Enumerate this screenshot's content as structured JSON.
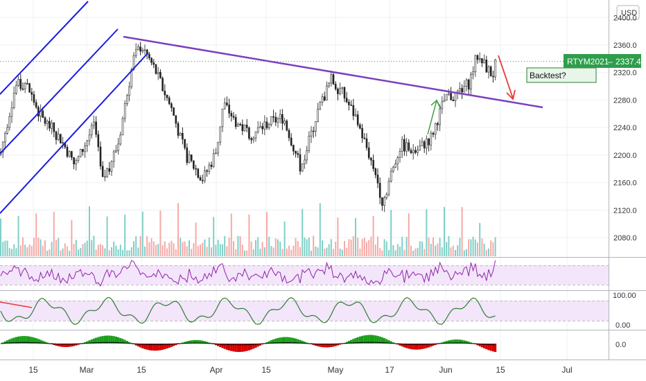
{
  "currency_label": "USD",
  "colors": {
    "up": "#26a69a",
    "down": "#ef5350",
    "vol_up": "#7fcfc7",
    "vol_down": "#f6a9a6",
    "channel": "#1a1adf",
    "trendline": "#7b3fbf",
    "arrow": "#e53935",
    "green_arrow": "#43a047",
    "price_tag_bg": "#2e9e4c",
    "rsi_line": "#8e24aa",
    "rsi_band": "#f3e5fa",
    "stoch_line": "#2e7d32",
    "stoch_band": "#f3e5fa",
    "osc_pos": "#1b9e1b",
    "osc_neg": "#d50000",
    "osc_line": "#111111"
  },
  "price_tag": {
    "symbol": "RTYM2021",
    "price": "2337.4"
  },
  "annotation": {
    "text": "Backtest?"
  },
  "price_axis": {
    "ticks": [
      "2360.0",
      "2320.0",
      "2280.0",
      "2240.0",
      "2200.0",
      "2160.0",
      "2120.0",
      "2080.0"
    ],
    "partial_top_tick": "2400.0"
  },
  "stoch_axis": {
    "ticks": [
      "100.00",
      "0.00"
    ]
  },
  "osc_axis": {
    "ticks": [
      "0.0"
    ]
  },
  "time_axis": {
    "labels": [
      "15",
      "Mar",
      "15",
      "Apr",
      "15",
      "May",
      "17",
      "Jun",
      "15",
      "Jul"
    ]
  },
  "chart_data": {
    "type": "candlestick",
    "symbol": "RTYM2021",
    "currency": "USD",
    "y_range": [
      2040,
      2410
    ],
    "x_labels": [
      "15",
      "Mar",
      "15",
      "Apr",
      "15",
      "May",
      "17",
      "Jun",
      "15",
      "Jul"
    ],
    "last_price": 2337.4,
    "close_path": [
      [
        "Feb 02",
        2200
      ],
      [
        "Feb 08",
        2300
      ],
      [
        "Feb 12",
        2305
      ],
      [
        "Feb 17",
        2255
      ],
      [
        "Feb 22",
        2225
      ],
      [
        "Feb 26",
        2185
      ],
      [
        "Mar 03",
        2245
      ],
      [
        "Mar 05",
        2160
      ],
      [
        "Mar 09",
        2215
      ],
      [
        "Mar 13",
        2340
      ],
      [
        "Mar 15",
        2360
      ],
      [
        "Mar 18",
        2325
      ],
      [
        "Mar 22",
        2265
      ],
      [
        "Mar 25",
        2200
      ],
      [
        "Mar 29",
        2165
      ],
      [
        "Apr 01",
        2205
      ],
      [
        "Apr 03",
        2275
      ],
      [
        "Apr 07",
        2245
      ],
      [
        "Apr 11",
        2230
      ],
      [
        "Apr 15",
        2245
      ],
      [
        "Apr 19",
        2255
      ],
      [
        "Apr 23",
        2180
      ],
      [
        "Apr 27",
        2265
      ],
      [
        "Apr 30",
        2310
      ],
      [
        "May 03",
        2290
      ],
      [
        "May 07",
        2255
      ],
      [
        "May 11",
        2200
      ],
      [
        "May 13",
        2170
      ],
      [
        "May 15",
        2130
      ],
      [
        "May 17",
        2165
      ],
      [
        "May 20",
        2215
      ],
      [
        "May 24",
        2205
      ],
      [
        "May 28",
        2225
      ],
      [
        "Jun 01",
        2285
      ],
      [
        "Jun 03",
        2285
      ],
      [
        "Jun 07",
        2305
      ],
      [
        "Jun 09",
        2345
      ],
      [
        "Jun 11",
        2330
      ],
      [
        "Jun 13",
        2315
      ],
      [
        "Jun 14",
        2337.4
      ]
    ],
    "indicators": [
      {
        "name": "RSI-style oscillator",
        "band": [
          30,
          70
        ]
      },
      {
        "name": "Stochastic",
        "ticks": [
          100,
          0
        ]
      },
      {
        "name": "Histogram oscillator",
        "ticks": [
          0
        ]
      }
    ]
  }
}
